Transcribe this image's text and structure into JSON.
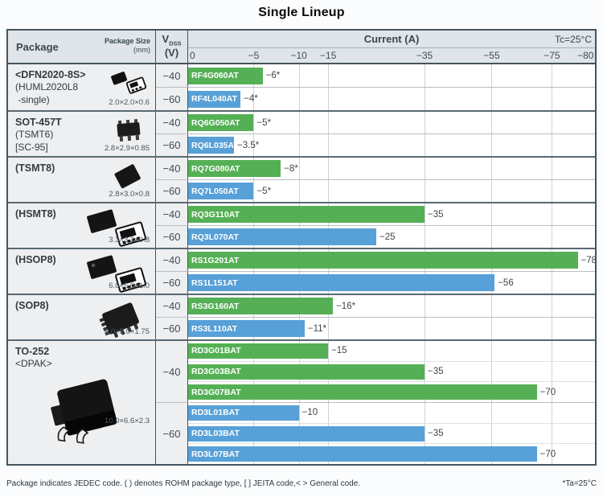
{
  "title": "Single Lineup",
  "header": {
    "package_label": "Package",
    "package_size_label": "Package Size",
    "package_size_unit": "(mm)",
    "vdss_label": "V",
    "vdss_sub": "DSS",
    "vdss_unit": "(V)",
    "current_label": "Current (A)",
    "temp_label": "Tc=25°C"
  },
  "footer": {
    "note": "Package indicates JEDEC code. ( ) denotes ROHM package type, [ ] JEITA code,< > General code.",
    "temp_note": "*Ta=25°C"
  },
  "colors": {
    "bar_green": "#55b055",
    "bar_blue": "#57a0d8",
    "header_bg": "#e0e5e9",
    "cell_bg": "#edeff1",
    "border_dark": "#45545e"
  },
  "chart_data": {
    "type": "bar",
    "orientation": "horizontal",
    "title": "Single Lineup",
    "xlabel": "Current (A)",
    "condition": "Tc=25°C",
    "axis": {
      "tick_labels": [
        "0",
        "−5",
        "−10",
        "−15",
        "−35",
        "−55",
        "−75",
        "−80"
      ],
      "tick_values": [
        0,
        -5,
        -10,
        -15,
        -35,
        -55,
        -75,
        -80
      ],
      "tick_percents": [
        0,
        16.1,
        27.2,
        34.4,
        58.1,
        74.6,
        89.4,
        100
      ],
      "scale": "piecewise-nonlinear"
    },
    "groups": [
      {
        "id": "dfn2020",
        "name_lines": [
          "<DFN2020-8S>",
          "(HUML2020L8",
          " -single)"
        ],
        "size": "2.0×2.0×0.6",
        "icon": "dfn2020",
        "sections": [
          {
            "vdss": "−40",
            "bars": [
              {
                "part": "RF4G060AT",
                "value": -6,
                "label": "−6*",
                "color": "green"
              }
            ]
          },
          {
            "vdss": "−60",
            "bars": [
              {
                "part": "RF4L040AT",
                "value": -4,
                "label": "−4*",
                "color": "blue"
              }
            ]
          }
        ]
      },
      {
        "id": "sot457t",
        "name_lines": [
          "SOT-457T",
          "(TSMT6)",
          "[SC-95]"
        ],
        "size": "2.8×2.9×0.85",
        "icon": "sot457t",
        "sections": [
          {
            "vdss": "−40",
            "bars": [
              {
                "part": "RQ6G050AT",
                "value": -5,
                "label": "−5*",
                "color": "green"
              }
            ]
          },
          {
            "vdss": "−60",
            "bars": [
              {
                "part": "RQ6L035AT",
                "value": -3.5,
                "label": "−3.5*",
                "color": "blue"
              }
            ]
          }
        ]
      },
      {
        "id": "tsmt8",
        "name_lines": [
          "(TSMT8)"
        ],
        "size": "2.8×3.0×0.8",
        "icon": "tsmt8",
        "sections": [
          {
            "vdss": "−40",
            "bars": [
              {
                "part": "RQ7G080AT",
                "value": -8,
                "label": "−8*",
                "color": "green"
              }
            ]
          },
          {
            "vdss": "−60",
            "bars": [
              {
                "part": "RQ7L050AT",
                "value": -5,
                "label": "−5*",
                "color": "blue"
              }
            ]
          }
        ]
      },
      {
        "id": "hsmt8",
        "name_lines": [
          "(HSMT8)"
        ],
        "size": "3.3×3.3×0.8",
        "icon": "hsmt8",
        "sections": [
          {
            "vdss": "−40",
            "bars": [
              {
                "part": "RQ3G110AT",
                "value": -35,
                "label": "−35",
                "color": "green"
              }
            ]
          },
          {
            "vdss": "−60",
            "bars": [
              {
                "part": "RQ3L070AT",
                "value": -25,
                "label": "−25",
                "color": "blue"
              }
            ]
          }
        ]
      },
      {
        "id": "hsop8",
        "name_lines": [
          "(HSOP8)"
        ],
        "size": "6.0×5.0×1.0",
        "icon": "hsop8",
        "sections": [
          {
            "vdss": "−40",
            "bars": [
              {
                "part": "RS1G201AT",
                "value": -78,
                "label": "−78",
                "color": "green"
              }
            ]
          },
          {
            "vdss": "−60",
            "bars": [
              {
                "part": "RS1L151AT",
                "value": -56,
                "label": "−56",
                "color": "blue"
              }
            ]
          }
        ]
      },
      {
        "id": "sop8",
        "name_lines": [
          "(SOP8)"
        ],
        "size": "6.0×5.0×1.75",
        "icon": "sop8",
        "sections": [
          {
            "vdss": "−40",
            "bars": [
              {
                "part": "RS3G160AT",
                "value": -16,
                "label": "−16*",
                "color": "green"
              }
            ]
          },
          {
            "vdss": "−60",
            "bars": [
              {
                "part": "RS3L110AT",
                "value": -11,
                "label": "−11*",
                "color": "blue"
              }
            ]
          }
        ]
      },
      {
        "id": "to252",
        "name_lines": [
          "TO-252",
          "<DPAK>"
        ],
        "size": "10.0×6.6×2.3",
        "icon": "to252",
        "tall": true,
        "sections": [
          {
            "vdss": "−40",
            "bars": [
              {
                "part": "RD3G01BAT",
                "value": -15,
                "label": "−15",
                "color": "green"
              },
              {
                "part": "RD3G03BAT",
                "value": -35,
                "label": "−35",
                "color": "green"
              },
              {
                "part": "RD3G07BAT",
                "value": -70,
                "label": "−70",
                "color": "green"
              }
            ]
          },
          {
            "vdss": "−60",
            "bars": [
              {
                "part": "RD3L01BAT",
                "value": -10,
                "label": "−10",
                "color": "blue"
              },
              {
                "part": "RD3L03BAT",
                "value": -35,
                "label": "−35",
                "color": "blue"
              },
              {
                "part": "RD3L07BAT",
                "value": -70,
                "label": "−70",
                "color": "blue"
              }
            ]
          }
        ]
      }
    ]
  }
}
